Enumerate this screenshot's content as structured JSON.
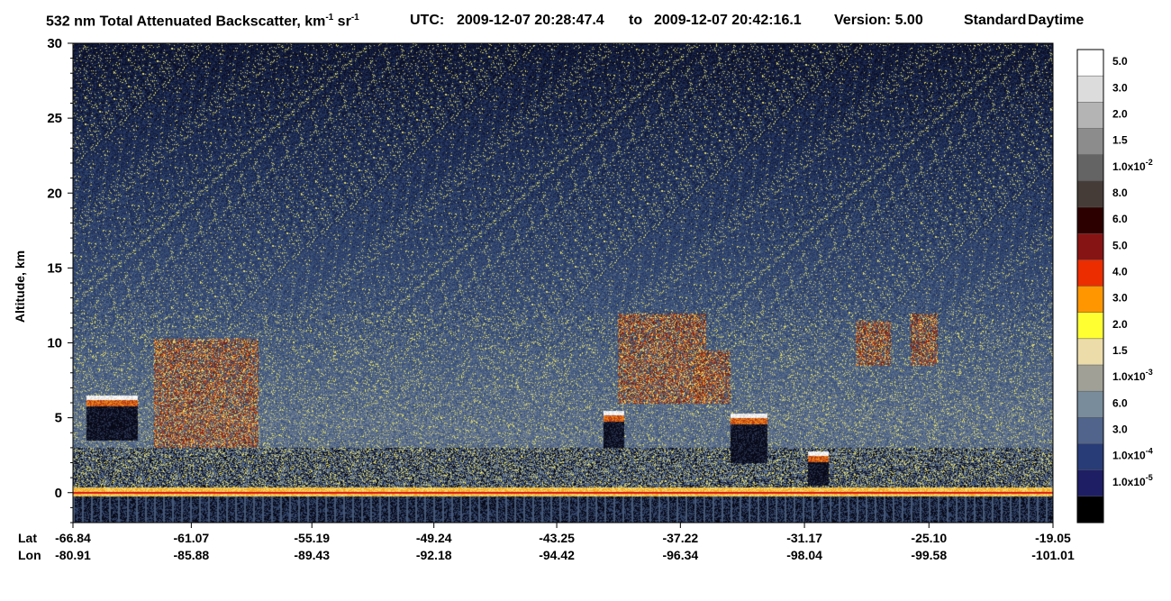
{
  "title": {
    "main_prefix": "532 nm Total Attenuated Backscatter, km",
    "main_sup1": "-1",
    "main_mid": " sr",
    "main_sup2": "-1",
    "utc_label": "UTC:",
    "start_time": "2009-12-07 20:28:47.4",
    "to_label": "to",
    "end_time": "2009-12-07 20:42:16.1",
    "version": "Version: 5.00",
    "product": "Standard",
    "mode": "Daytime"
  },
  "chart_data": {
    "type": "heatmap",
    "ylabel": "Altitude, km",
    "ylim": [
      -2,
      30
    ],
    "yticks": [
      "0",
      "5",
      "10",
      "15",
      "20",
      "25",
      "30"
    ],
    "x_row_labels": [
      "Lat",
      "Lon"
    ],
    "lat_ticks": [
      "-66.84",
      "-61.07",
      "-55.19",
      "-49.24",
      "-43.25",
      "-37.22",
      "-31.17",
      "-25.10",
      "-19.05"
    ],
    "lon_ticks": [
      "-80.91",
      "-85.88",
      "-89.43",
      "-92.18",
      "-94.42",
      "-96.34",
      "-98.04",
      "-99.58",
      "-101.01"
    ],
    "surface_altitude_km": 0,
    "clouds": [
      {
        "lat_range": [
          -66.2,
          -63.7
        ],
        "alt_range": [
          3.5,
          6.5
        ],
        "kind": "water"
      },
      {
        "lat_range": [
          -62.9,
          -57.8
        ],
        "alt_range": [
          3.0,
          10.3
        ],
        "kind": "ice"
      },
      {
        "lat_range": [
          -40.3,
          -36.0
        ],
        "alt_range": [
          6.0,
          12.0
        ],
        "kind": "ice"
      },
      {
        "lat_range": [
          -36.5,
          -34.8
        ],
        "alt_range": [
          6.0,
          9.5
        ],
        "kind": "ice"
      },
      {
        "lat_range": [
          -28.7,
          -27.0
        ],
        "alt_range": [
          8.5,
          11.5
        ],
        "kind": "ice"
      },
      {
        "lat_range": [
          -26.0,
          -24.7
        ],
        "alt_range": [
          8.5,
          12.0
        ],
        "kind": "ice"
      },
      {
        "lat_range": [
          -41.0,
          -40.0
        ],
        "alt_range": [
          3.0,
          5.5
        ],
        "kind": "water"
      },
      {
        "lat_range": [
          -34.8,
          -33.0
        ],
        "alt_range": [
          2.0,
          5.3
        ],
        "kind": "water"
      },
      {
        "lat_range": [
          -31.0,
          -30.0
        ],
        "alt_range": [
          0.5,
          2.8
        ],
        "kind": "water"
      }
    ],
    "colorbar": {
      "labels": [
        "5.0",
        "3.0",
        "2.0",
        "1.5",
        "1.0x10",
        "8.0",
        "6.0",
        "5.0",
        "4.0",
        "3.0",
        "2.0",
        "1.5",
        "1.0x10",
        "6.0",
        "3.0",
        "1.0x10",
        "1.0x10"
      ],
      "exponents": [
        "",
        "",
        "",
        "",
        "-2",
        "",
        "",
        "",
        "",
        "",
        "",
        "",
        "-3",
        "",
        "",
        "-4",
        "-5"
      ],
      "colors": [
        "#ffffff",
        "#dcdcdc",
        "#b4b4b4",
        "#8c8c8c",
        "#646464",
        "#463c37",
        "#2d0000",
        "#871414",
        "#eb2d00",
        "#ff9600",
        "#ffff32",
        "#ebdcaa",
        "#a0a096",
        "#788c9b",
        "#50648c",
        "#283c78",
        "#1e1e64",
        "#000000"
      ]
    }
  }
}
